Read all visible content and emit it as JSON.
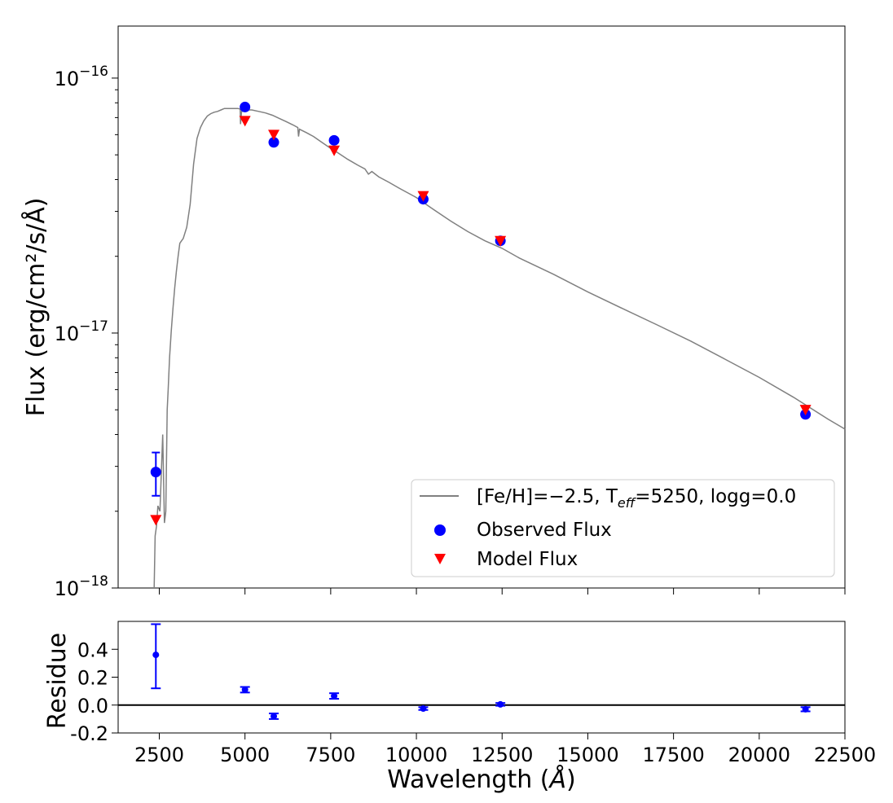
{
  "chart_data": [
    {
      "type": "scatter",
      "panel": "main",
      "ylabel": "Flux (erg/cm²/s/Å)",
      "xlim": [
        1300,
        22500
      ],
      "ylim": [
        1e-18,
        1.6e-16
      ],
      "yscale": "log",
      "y_ticks": [
        1e-18,
        1e-17,
        1e-16
      ],
      "y_tick_labels": [
        {
          "base": "10",
          "exp": "−18"
        },
        {
          "base": "10",
          "exp": "−17"
        },
        {
          "base": "10",
          "exp": "−16"
        }
      ],
      "legend": {
        "placement": "lower-right",
        "model_label": {
          "pre": "[Fe/H]=−2.5, T",
          "sub": "eff",
          "post": "=5250, logg=0.0"
        },
        "observed_label": "Observed Flux",
        "predicted_label": "Model Flux"
      },
      "series": [
        {
          "name": "[Fe/H]=−2.5, Teff=5250, logg=0.0",
          "kind": "line",
          "color": "#808080",
          "x": [
            2350,
            2380,
            2420,
            2460,
            2520,
            2600,
            2650,
            2690,
            2730,
            2760,
            2800,
            2850,
            2900,
            2950,
            3000,
            3050,
            3100,
            3150,
            3200,
            3300,
            3400,
            3500,
            3600,
            3700,
            3800,
            3900,
            4000,
            4100,
            4200,
            4300,
            4400,
            4500,
            4600,
            4700,
            4800,
            4860,
            4870,
            4900,
            5000,
            5100,
            5200,
            5400,
            5600,
            5800,
            6000,
            6200,
            6400,
            6540,
            6563,
            6590,
            6800,
            7000,
            7200,
            7500,
            7700,
            8000,
            8300,
            8500,
            8600,
            8700,
            8900,
            9200,
            9500,
            10000,
            10500,
            11000,
            11500,
            12000,
            12500,
            13000,
            14000,
            15000,
            16000,
            17000,
            18000,
            19000,
            20000,
            21000,
            22000,
            22500
          ],
          "y": [
            1e-18,
            1.6e-18,
            1.75e-18,
            2.1e-18,
            2e-18,
            4e-18,
            1.8e-18,
            2e-18,
            5e-18,
            6e-18,
            8e-18,
            1.02e-17,
            1.25e-17,
            1.5e-17,
            1.75e-17,
            2e-17,
            2.25e-17,
            2.3e-17,
            2.35e-17,
            2.6e-17,
            3.2e-17,
            4.6e-17,
            5.8e-17,
            6.4e-17,
            6.8e-17,
            7.1e-17,
            7.25e-17,
            7.35e-17,
            7.4e-17,
            7.5e-17,
            7.6e-17,
            7.6e-17,
            7.6e-17,
            7.6e-17,
            7.6e-17,
            7.55e-17,
            6.6e-17,
            7.4e-17,
            7.45e-17,
            7.5e-17,
            7.5e-17,
            7.4e-17,
            7.3e-17,
            7.15e-17,
            6.95e-17,
            6.75e-17,
            6.55e-17,
            6.4e-17,
            5.9e-17,
            6.3e-17,
            6.1e-17,
            5.9e-17,
            5.65e-17,
            5.3e-17,
            5.1e-17,
            4.8e-17,
            4.55e-17,
            4.4e-17,
            4.2e-17,
            4.3e-17,
            4.1e-17,
            3.9e-17,
            3.7e-17,
            3.4e-17,
            3.05e-17,
            2.75e-17,
            2.5e-17,
            2.3e-17,
            2.15e-17,
            1.97e-17,
            1.7e-17,
            1.45e-17,
            1.25e-17,
            1.08e-17,
            9.3e-18,
            7.9e-18,
            6.7e-18,
            5.6e-18,
            4.6e-18,
            4.2e-18
          ]
        },
        {
          "name": "Observed Flux",
          "kind": "points",
          "color": "#0000ff",
          "x": [
            2400,
            5000,
            5840,
            7600,
            10200,
            12450,
            21350
          ],
          "y": [
            2.85e-18,
            7.7e-17,
            5.6e-17,
            5.7e-17,
            3.35e-17,
            2.3e-17,
            4.8e-18
          ],
          "yerr_low": [
            2.3e-18,
            null,
            null,
            null,
            null,
            null,
            null
          ],
          "yerr_high": [
            3.4e-18,
            null,
            null,
            null,
            null,
            null,
            null
          ]
        },
        {
          "name": "Model Flux",
          "kind": "points",
          "color": "#ff0000",
          "x": [
            2400,
            5000,
            5840,
            7600,
            10200,
            12450,
            21350
          ],
          "y": [
            1.85e-18,
            6.8e-17,
            6e-17,
            5.2e-17,
            3.45e-17,
            2.3e-17,
            5e-18
          ]
        }
      ]
    },
    {
      "type": "scatter",
      "panel": "residual",
      "xlabel": {
        "pre": "Wavelength (",
        "italic": "Å",
        "post": ")"
      },
      "ylabel": "Residue",
      "xlim": [
        1300,
        22500
      ],
      "ylim": [
        -0.2,
        0.6
      ],
      "x_ticks": [
        2500,
        5000,
        7500,
        10000,
        12500,
        15000,
        17500,
        20000,
        22500
      ],
      "x_tick_labels": [
        "2500",
        "5000",
        "7500",
        "10000",
        "12500",
        "15000",
        "17500",
        "20000",
        "22500"
      ],
      "y_ticks": [
        -0.2,
        0.0,
        0.2,
        0.4
      ],
      "y_tick_labels": [
        "-0.2",
        "0.0",
        "0.2",
        "0.4"
      ],
      "zero_line": 0.0,
      "series": [
        {
          "name": "Residue",
          "color": "#0000ff",
          "x": [
            2400,
            5000,
            5840,
            7600,
            10200,
            12450,
            21350
          ],
          "y": [
            0.36,
            0.11,
            -0.08,
            0.065,
            -0.025,
            0.005,
            -0.03
          ],
          "yerr_low": [
            0.12,
            0.09,
            -0.1,
            0.045,
            -0.035,
            -0.005,
            -0.045
          ],
          "yerr_high": [
            0.58,
            0.13,
            -0.06,
            0.085,
            -0.015,
            0.015,
            -0.015
          ]
        }
      ]
    }
  ]
}
